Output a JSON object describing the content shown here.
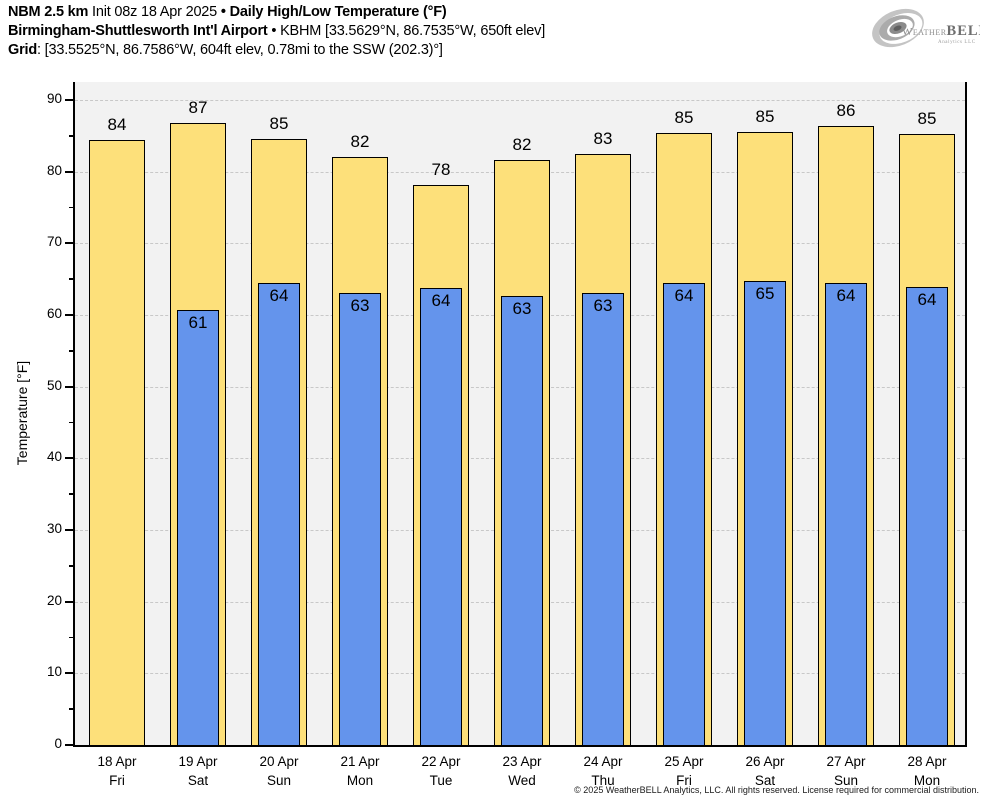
{
  "header": {
    "line1": {
      "model": "NBM 2.5 km",
      "init": "Init 08z 18 Apr 2025",
      "sep": "•",
      "title": "Daily High/Low Temperature (°F)"
    },
    "line2": {
      "station": "Birmingham-Shuttlesworth Int'l Airport",
      "details": "• KBHM [33.5629°N, 86.7535°W, 650ft elev]"
    },
    "line3": {
      "label": "Grid",
      "details": ": [33.5525°N, 86.7586°W, 604ft elev, 0.78mi to the SSW (202.3)°]"
    }
  },
  "logo": {
    "weather": "Weather",
    "bell": "BELL",
    "sub": "Analytics LLC"
  },
  "footer": "© 2025 WeatherBELL Analytics, LLC. All rights reserved. License required for commercial distribution.",
  "chart_data": {
    "type": "bar",
    "title": "Daily High/Low Temperature (°F)",
    "ylabel": "Temperature [°F]",
    "ylim": [
      0,
      90
    ],
    "yticks": [
      0,
      10,
      20,
      30,
      40,
      50,
      60,
      70,
      80,
      90
    ],
    "grid": "horizontal dashed at major ticks",
    "legend_position": "none",
    "plot_bg": "#f2f2f2",
    "grid_color": "#c8c8c8",
    "categories": [
      {
        "date": "18 Apr",
        "day": "Fri"
      },
      {
        "date": "19 Apr",
        "day": "Sat"
      },
      {
        "date": "20 Apr",
        "day": "Sun"
      },
      {
        "date": "21 Apr",
        "day": "Mon"
      },
      {
        "date": "22 Apr",
        "day": "Tue"
      },
      {
        "date": "23 Apr",
        "day": "Wed"
      },
      {
        "date": "24 Apr",
        "day": "Thu"
      },
      {
        "date": "25 Apr",
        "day": "Fri"
      },
      {
        "date": "26 Apr",
        "day": "Sat"
      },
      {
        "date": "27 Apr",
        "day": "Sun"
      },
      {
        "date": "28 Apr",
        "day": "Mon"
      }
    ],
    "series": [
      {
        "name": "Daily High",
        "color": "#FDE07A",
        "values": [
          84,
          87,
          85,
          82,
          78,
          82,
          83,
          85,
          85,
          86,
          85
        ],
        "plotted": [
          84.4,
          86.8,
          84.6,
          82.1,
          78.1,
          81.6,
          82.5,
          85.4,
          85.5,
          86.4,
          85.3
        ]
      },
      {
        "name": "Daily Low",
        "color": "#6494EC",
        "values": [
          null,
          61,
          64,
          63,
          64,
          63,
          63,
          64,
          65,
          64,
          64
        ],
        "plotted": [
          null,
          60.7,
          64.4,
          63.0,
          63.7,
          62.7,
          63.1,
          64.5,
          64.8,
          64.4,
          63.9
        ]
      }
    ]
  }
}
